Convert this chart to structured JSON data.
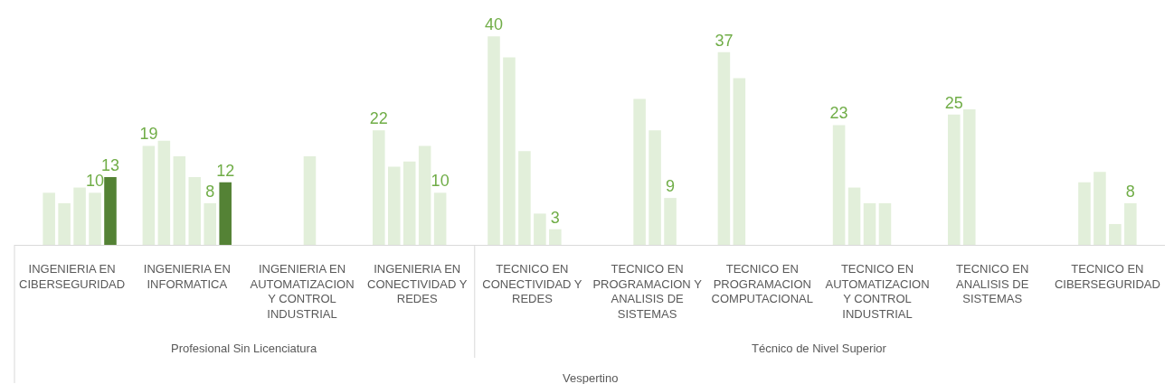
{
  "chart_data": {
    "type": "bar",
    "categories": [
      "INGENIERIA EN CIBERSEGURIDAD",
      "INGENIERIA EN INFORMATICA",
      "INGENIERIA EN AUTOMATIZACION Y CONTROL INDUSTRIAL",
      "INGENIERIA EN CONECTIVIDAD Y REDES",
      "TECNICO EN CONECTIVIDAD Y REDES",
      "TECNICO EN PROGRAMACION Y ANALISIS DE SISTEMAS",
      "TECNICO EN PROGRAMACION COMPUTACIONAL",
      "TECNICO EN AUTOMATIZACION Y CONTROL INDUSTRIAL",
      "TECNICO EN ANALISIS DE SISTEMAS",
      "TECNICO EN CIBERSEGURIDAD"
    ],
    "series": [
      {
        "color": "#e2efda",
        "values": [
          null,
          19,
          null,
          22,
          40,
          null,
          37,
          23,
          25,
          null
        ],
        "value_labels": [
          null,
          "19",
          null,
          "22",
          "40",
          null,
          "37",
          "23",
          "25",
          null
        ]
      },
      {
        "color": "#e2efda",
        "values": [
          10,
          20,
          null,
          15,
          36,
          null,
          32,
          11,
          26,
          12
        ]
      },
      {
        "color": "#e2efda",
        "values": [
          8,
          17,
          null,
          16,
          18,
          28,
          null,
          8,
          null,
          14
        ]
      },
      {
        "color": "#e2efda",
        "values": [
          11,
          13,
          17,
          19,
          6,
          22,
          null,
          8,
          null,
          4
        ]
      },
      {
        "color": "#e2efda",
        "values": [
          10,
          8,
          null,
          10,
          3,
          9,
          null,
          null,
          null,
          8
        ],
        "value_labels": [
          "10",
          "8",
          null,
          "10",
          "3",
          "9",
          null,
          null,
          null,
          "8"
        ]
      },
      {
        "color": "#548235",
        "values": [
          13,
          12,
          null,
          null,
          null,
          null,
          null,
          null,
          null,
          null
        ],
        "value_labels": [
          "13",
          "12",
          null,
          null,
          null,
          null,
          null,
          null,
          null,
          null
        ]
      }
    ],
    "ylim": [
      0,
      47
    ],
    "xlabel": "Vespertino",
    "annotations": [
      "Profesional Sin Licenciatura",
      "Técnico de Nivel Superior"
    ]
  }
}
